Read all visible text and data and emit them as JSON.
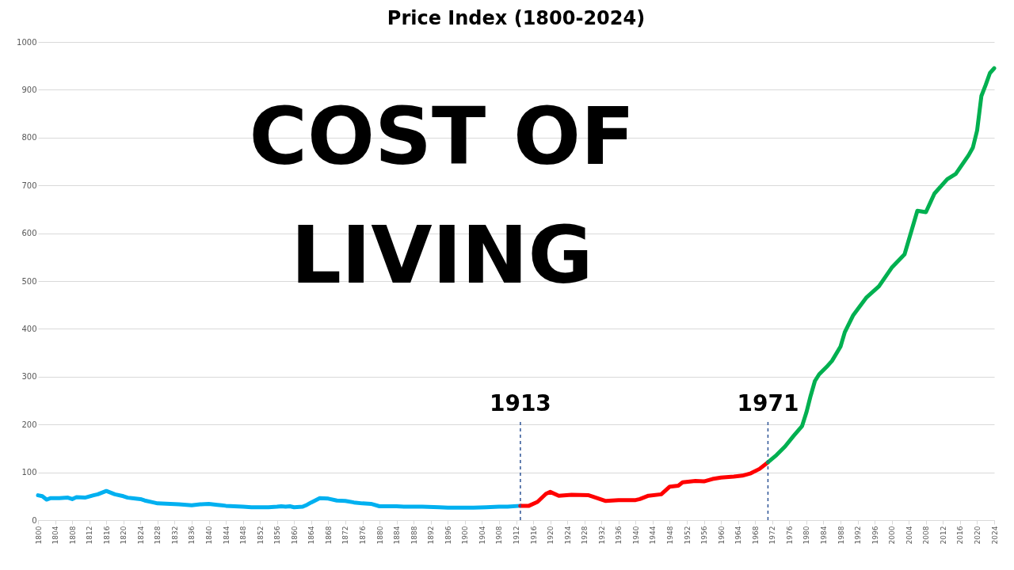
{
  "chart_data": {
    "type": "line",
    "title": "Price Index (1800-2024)",
    "annotations": [
      "COST OF LIVING"
    ],
    "series": [
      {
        "color": "#00b0f0",
        "x": [
          1800,
          1801,
          1802,
          1803,
          1805,
          1807,
          1808,
          1809,
          1811,
          1813,
          1814,
          1816,
          1818,
          1820,
          1821,
          1822,
          1824,
          1825,
          1827,
          1828,
          1831,
          1833,
          1836,
          1838,
          1840,
          1842,
          1843,
          1844,
          1846,
          1848,
          1850,
          1852,
          1854,
          1856,
          1857,
          1858,
          1859,
          1860,
          1862,
          1863,
          1864,
          1866,
          1868,
          1870,
          1872,
          1874,
          1876,
          1878,
          1880,
          1884,
          1886,
          1890,
          1894,
          1896,
          1902,
          1905,
          1908,
          1910,
          1913
        ],
        "values": [
          52,
          50,
          43,
          46,
          46,
          47,
          44,
          48,
          47,
          52,
          54,
          61,
          54,
          50,
          47,
          46,
          44,
          41,
          37,
          35,
          34,
          33,
          31,
          33,
          34,
          32,
          31,
          30,
          29,
          28,
          27,
          27,
          27,
          28,
          29,
          28,
          29,
          27,
          28,
          32,
          37,
          46,
          45,
          41,
          40,
          37,
          35,
          34,
          29,
          29,
          28,
          28,
          27,
          26,
          26,
          27,
          28,
          28,
          30
        ]
      },
      {
        "color": "#ff0000",
        "x": [
          1913,
          1915,
          1917,
          1919,
          1920,
          1922,
          1925,
          1929,
          1930,
          1933,
          1936,
          1940,
          1941,
          1943,
          1946,
          1948,
          1950,
          1951,
          1954,
          1956,
          1958,
          1960,
          1963,
          1965,
          1967,
          1969,
          1971
        ],
        "values": [
          30,
          30,
          38,
          55,
          59,
          51,
          53,
          52,
          49,
          40,
          42,
          42,
          44,
          51,
          54,
          70,
          72,
          79,
          82,
          81,
          86,
          89,
          91,
          93,
          98,
          107,
          121
        ]
      },
      {
        "color": "#00b050",
        "x": [
          1971,
          1973,
          1975,
          1977,
          1979,
          1980,
          1981,
          1982,
          1983,
          1985,
          1986,
          1988,
          1989,
          1991,
          1994,
          1997,
          2000,
          2003,
          2006,
          2008,
          2010,
          2013,
          2015,
          2018,
          2019,
          2020,
          2021,
          2022,
          2023,
          2024
        ],
        "values": [
          121,
          136,
          154,
          176,
          197,
          225,
          260,
          291,
          305,
          323,
          333,
          363,
          393,
          429,
          465,
          489,
          528,
          556,
          647,
          644,
          683,
          713,
          724,
          763,
          779,
          815,
          887,
          910,
          935,
          945
        ]
      }
    ],
    "xlim": [
      1800,
      2024
    ],
    "xticks": [
      1800,
      1804,
      1808,
      1812,
      1816,
      1820,
      1824,
      1828,
      1832,
      1836,
      1840,
      1844,
      1848,
      1852,
      1856,
      1860,
      1864,
      1868,
      1872,
      1876,
      1880,
      1884,
      1888,
      1892,
      1896,
      1900,
      1904,
      1908,
      1912,
      1916,
      1920,
      1924,
      1928,
      1932,
      1936,
      1940,
      1944,
      1948,
      1952,
      1956,
      1960,
      1964,
      1968,
      1972,
      1976,
      1980,
      1984,
      1988,
      1992,
      1996,
      2000,
      2004,
      2008,
      2012,
      2016,
      2020,
      2024
    ],
    "ylim": [
      0,
      1000
    ],
    "yticks": [
      0,
      100,
      200,
      300,
      400,
      500,
      600,
      700,
      800,
      900,
      1000
    ],
    "grid": "y",
    "ref_lines": [
      {
        "axis": "x",
        "value": 1913,
        "label": "1913",
        "color": "#2f5597",
        "line_style": "dashed"
      },
      {
        "axis": "x",
        "value": 1971,
        "label": "1971",
        "color": "#2f5597",
        "line_style": "dashed"
      }
    ]
  }
}
